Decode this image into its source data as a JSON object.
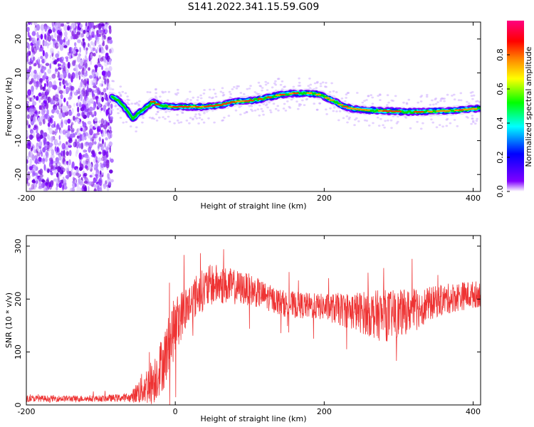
{
  "chart_data": [
    {
      "type": "heatmap",
      "title": "S141.2022.341.15.59.G09",
      "xlabel": "Height of straight line (km)",
      "ylabel": "Frequency (Hz)",
      "xlim": [
        -200,
        410
      ],
      "ylim": [
        -25,
        25
      ],
      "x_ticks": [
        "-200",
        "0",
        "200",
        "400"
      ],
      "y_ticks": [
        "-20",
        "-10",
        "0",
        "10",
        "20"
      ],
      "colorbar": {
        "label": "Normalized spectral amplitude",
        "range": [
          0,
          1
        ],
        "ticks": [
          "0.0",
          "0.2",
          "0.4",
          "0.6",
          "0.8"
        ],
        "colormap": "rainbow (purple → blue → cyan → green → yellow → orange → red → magenta)"
      },
      "noise_region_x": [
        -200,
        -85
      ],
      "ridge": {
        "name": "",
        "x": [
          -85,
          -75,
          -65,
          -57,
          -50,
          -40,
          -30,
          -20,
          0,
          20,
          40,
          60,
          80,
          100,
          120,
          140,
          160,
          180,
          195,
          205,
          215,
          225,
          235,
          250,
          270,
          290,
          310,
          330,
          350,
          370,
          390,
          410
        ],
        "y": [
          3,
          1.5,
          -1,
          -3.5,
          -2,
          -0.5,
          1.5,
          0.2,
          0,
          0,
          0,
          0.5,
          1.5,
          1.8,
          2.5,
          3.5,
          4,
          4,
          3.5,
          2.5,
          1.5,
          0.2,
          -0.5,
          -0.8,
          -1.2,
          -1.3,
          -1.5,
          -1.5,
          -1.3,
          -1.2,
          -0.8,
          -0.5
        ]
      }
    },
    {
      "type": "line",
      "xlabel": "Height of straight line (km)",
      "ylabel": "SNR (10 * v/v)",
      "xlim": [
        -200,
        410
      ],
      "ylim": [
        0,
        320
      ],
      "x_ticks": [
        "-200",
        "0",
        "200",
        "400"
      ],
      "y_ticks": [
        "0",
        "100",
        "200",
        "300"
      ],
      "series": [
        {
          "color": "#ee3333",
          "trend_x": [
            -200,
            -100,
            -60,
            -45,
            -30,
            -15,
            -5,
            0,
            10,
            30,
            50,
            70,
            100,
            130,
            150,
            200,
            250,
            280,
            300,
            320,
            350,
            380,
            410
          ],
          "trend_y": [
            12,
            12,
            14,
            30,
            45,
            85,
            130,
            150,
            175,
            210,
            228,
            225,
            218,
            200,
            190,
            185,
            175,
            168,
            172,
            180,
            195,
            205,
            210
          ],
          "noise_amplitude": [
            6,
            6,
            8,
            30,
            45,
            55,
            60,
            55,
            45,
            40,
            40,
            35,
            30,
            25,
            25,
            25,
            40,
            50,
            45,
            40,
            30,
            28,
            25
          ]
        }
      ]
    }
  ]
}
